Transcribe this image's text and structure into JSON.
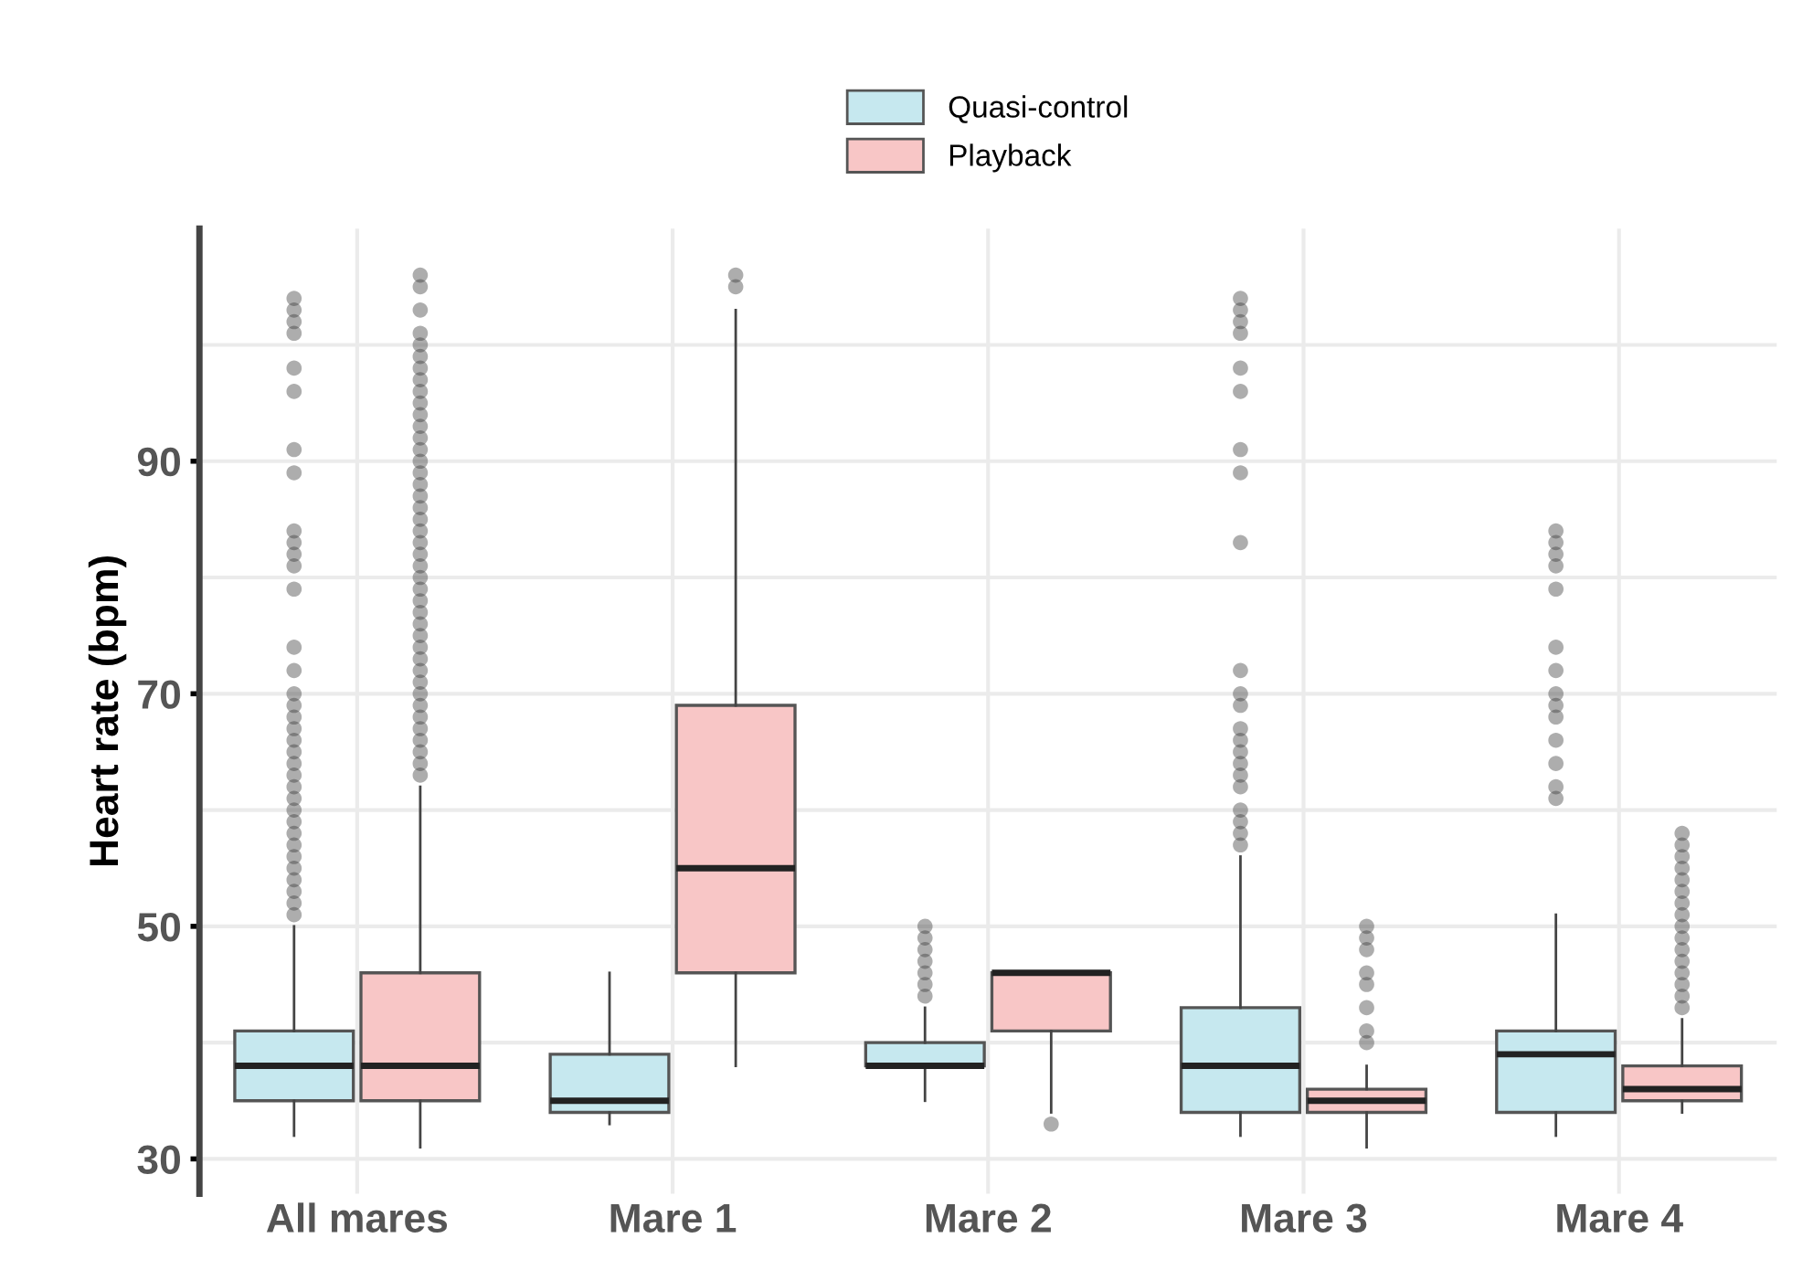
{
  "chart_data": {
    "type": "box",
    "ylabel": "Heart rate (bpm)",
    "categories": [
      "All mares",
      "Mare 1",
      "Mare 2",
      "Mare 3",
      "Mare 4"
    ],
    "ylim": [
      27,
      110
    ],
    "yticks": [
      30,
      {
        "value": 40,
        "label": null
      },
      50,
      {
        "value": 60,
        "label": null
      },
      70,
      {
        "value": 80,
        "label": null
      },
      90,
      {
        "value": 100,
        "label": null
      }
    ],
    "grid": true,
    "legend": "top",
    "series": [
      {
        "name": "Quasi-control",
        "color": "#c6e8ef",
        "boxes": [
          {
            "low": 32,
            "q1": 35,
            "median": 38,
            "q3": 41,
            "high": 50,
            "outliers": [
              51,
              52,
              53,
              54,
              55,
              56,
              57,
              58,
              59,
              60,
              61,
              62,
              63,
              64,
              65,
              66,
              67,
              68,
              69,
              70,
              72,
              74,
              79,
              81,
              82,
              83,
              84,
              89,
              91,
              96,
              98,
              101,
              102,
              103,
              104
            ]
          },
          {
            "low": 33,
            "q1": 34,
            "median": 35,
            "q3": 39,
            "high": 46
          },
          {
            "low": 35,
            "q1": 38,
            "median": 38,
            "q3": 40,
            "high": 43,
            "outliers": [
              44,
              45,
              46,
              47,
              48,
              49,
              50
            ]
          },
          {
            "low": 32,
            "q1": 34,
            "median": 38,
            "q3": 43,
            "high": 56,
            "outliers": [
              57,
              58,
              59,
              60,
              62,
              63,
              64,
              65,
              66,
              67,
              69,
              70,
              72,
              83,
              89,
              91,
              96,
              98,
              101,
              102,
              103,
              104
            ]
          },
          {
            "low": 32,
            "q1": 34,
            "median": 39,
            "q3": 41,
            "high": 51,
            "outliers": [
              61,
              62,
              64,
              66,
              68,
              69,
              70,
              72,
              74,
              79,
              81,
              82,
              83,
              84
            ]
          }
        ]
      },
      {
        "name": "Playback",
        "color": "#f8c6c6",
        "boxes": [
          {
            "low": 31,
            "q1": 35,
            "median": 38,
            "q3": 46,
            "high": 62,
            "outliers": [
              63,
              64,
              65,
              66,
              67,
              68,
              69,
              70,
              71,
              72,
              73,
              74,
              75,
              76,
              77,
              78,
              79,
              80,
              81,
              82,
              83,
              84,
              85,
              86,
              87,
              88,
              89,
              90,
              91,
              92,
              93,
              94,
              95,
              96,
              97,
              98,
              99,
              100,
              101,
              103,
              105,
              106
            ]
          },
          {
            "low": 38,
            "q1": 46,
            "median": 55,
            "q3": 69,
            "high": 103,
            "outliers": [
              105,
              106
            ]
          },
          {
            "low": 34,
            "q1": 41,
            "median": 46,
            "q3": 46,
            "high": 46,
            "outliers": [
              33
            ]
          },
          {
            "low": 31,
            "q1": 34,
            "median": 35,
            "q3": 36,
            "high": 38,
            "outliers": [
              40,
              41,
              43,
              45,
              46,
              48,
              49,
              50
            ]
          },
          {
            "low": 34,
            "q1": 35,
            "median": 36,
            "q3": 38,
            "high": 42,
            "outliers": [
              43,
              44,
              45,
              46,
              47,
              48,
              49,
              50,
              51,
              52,
              53,
              54,
              55,
              56,
              57,
              58
            ]
          }
        ]
      }
    ]
  }
}
